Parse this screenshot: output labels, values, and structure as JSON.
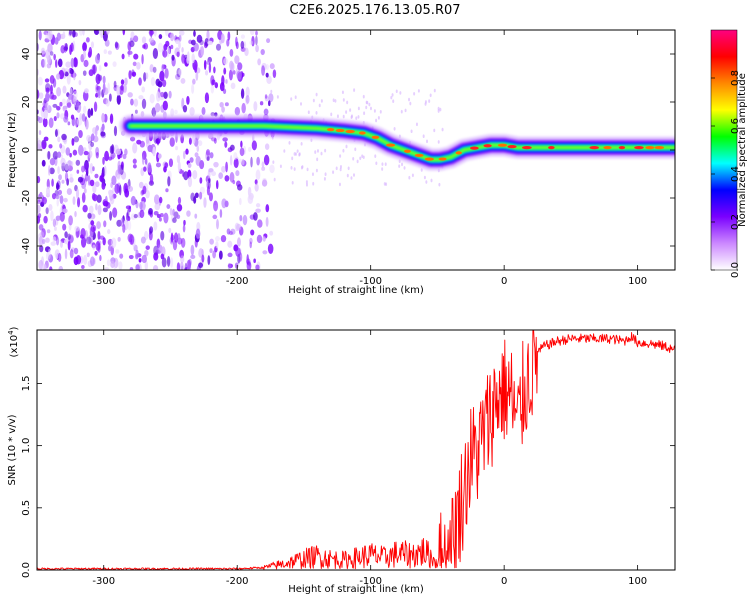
{
  "title": "C2E6.2025.176.13.05.R07",
  "chart_data": [
    {
      "type": "heatmap",
      "xlabel": "Height of straight line (km)",
      "ylabel": "Frequency (Hz)",
      "xlim": [
        -350,
        128
      ],
      "ylim": [
        -50,
        50
      ],
      "x_ticks": [
        -300,
        -200,
        -100,
        0,
        100
      ],
      "x_tick_labels": [
        "-300",
        "-200",
        "-100",
        "0",
        "100"
      ],
      "y_ticks": [
        -40,
        -20,
        0,
        20,
        40
      ],
      "y_tick_labels": [
        "-40",
        "-20",
        "0",
        "20",
        "40"
      ],
      "colorbar": {
        "label": "Normalized spectral amplitude",
        "range": [
          0,
          1
        ],
        "ticks": [
          0.0,
          0.2,
          0.4,
          0.6,
          0.8
        ],
        "tick_labels": [
          "0.0",
          "0.2",
          "0.4",
          "0.6",
          "0.8"
        ],
        "colors": [
          "#ffffff",
          "#cc88ff",
          "#7a00ff",
          "#0000ff",
          "#00ffff",
          "#00ff00",
          "#ffff00",
          "#ff8800",
          "#ff0000",
          "#ff0080"
        ]
      },
      "ridge": {
        "x": [
          -280,
          -250,
          -220,
          -200,
          -180,
          -160,
          -140,
          -120,
          -105,
          -95,
          -85,
          -75,
          -65,
          -55,
          -48,
          -40,
          -30,
          -20,
          -10,
          0,
          10,
          30,
          60,
          90,
          110,
          128
        ],
        "y": [
          10,
          10,
          10,
          10,
          10,
          9.5,
          9,
          8,
          7,
          5,
          2,
          0,
          -2,
          -4,
          -4,
          -3,
          0,
          1,
          2,
          2,
          1,
          1,
          1,
          1,
          1,
          1
        ]
      },
      "grid": false
    },
    {
      "type": "line",
      "xlabel": "Height of straight line (km)",
      "ylabel": "SNR (10 * v/v)",
      "y_multiplier": "(x10",
      "y_multiplier_exponent": "4",
      "y_multiplier_close": ")",
      "xlim": [
        -350,
        128
      ],
      "ylim": [
        0,
        1.93
      ],
      "x_ticks": [
        -300,
        -200,
        -100,
        0,
        100
      ],
      "x_tick_labels": [
        "-300",
        "-200",
        "-100",
        "0",
        "100"
      ],
      "y_ticks": [
        0.0,
        0.5,
        1.0,
        1.5
      ],
      "y_tick_labels": [
        "0.0",
        "0.5",
        "1.0",
        "1.5"
      ],
      "series": [
        {
          "color": "#ff0000",
          "x": [
            -350,
            -300,
            -250,
            -200,
            -180,
            -165,
            -150,
            -140,
            -130,
            -120,
            -110,
            -100,
            -90,
            -80,
            -70,
            -60,
            -50,
            -45,
            -40,
            -35,
            -30,
            -25,
            -20,
            -15,
            -10,
            -5,
            0,
            5,
            10,
            15,
            20,
            25,
            30,
            40,
            50,
            60,
            70,
            80,
            90,
            95,
            100,
            110,
            120,
            128
          ],
          "y": [
            0.01,
            0.01,
            0.01,
            0.01,
            0.02,
            0.05,
            0.09,
            0.11,
            0.09,
            0.08,
            0.1,
            0.12,
            0.1,
            0.13,
            0.12,
            0.15,
            0.06,
            0.03,
            0.15,
            0.4,
            0.65,
            0.9,
            0.95,
            1.1,
            1.25,
            1.4,
            1.45,
            1.4,
            1.15,
            1.45,
            1.6,
            1.75,
            1.8,
            1.84,
            1.86,
            1.86,
            1.86,
            1.86,
            1.84,
            1.88,
            1.83,
            1.82,
            1.8,
            1.77
          ]
        }
      ],
      "grid": false
    }
  ]
}
